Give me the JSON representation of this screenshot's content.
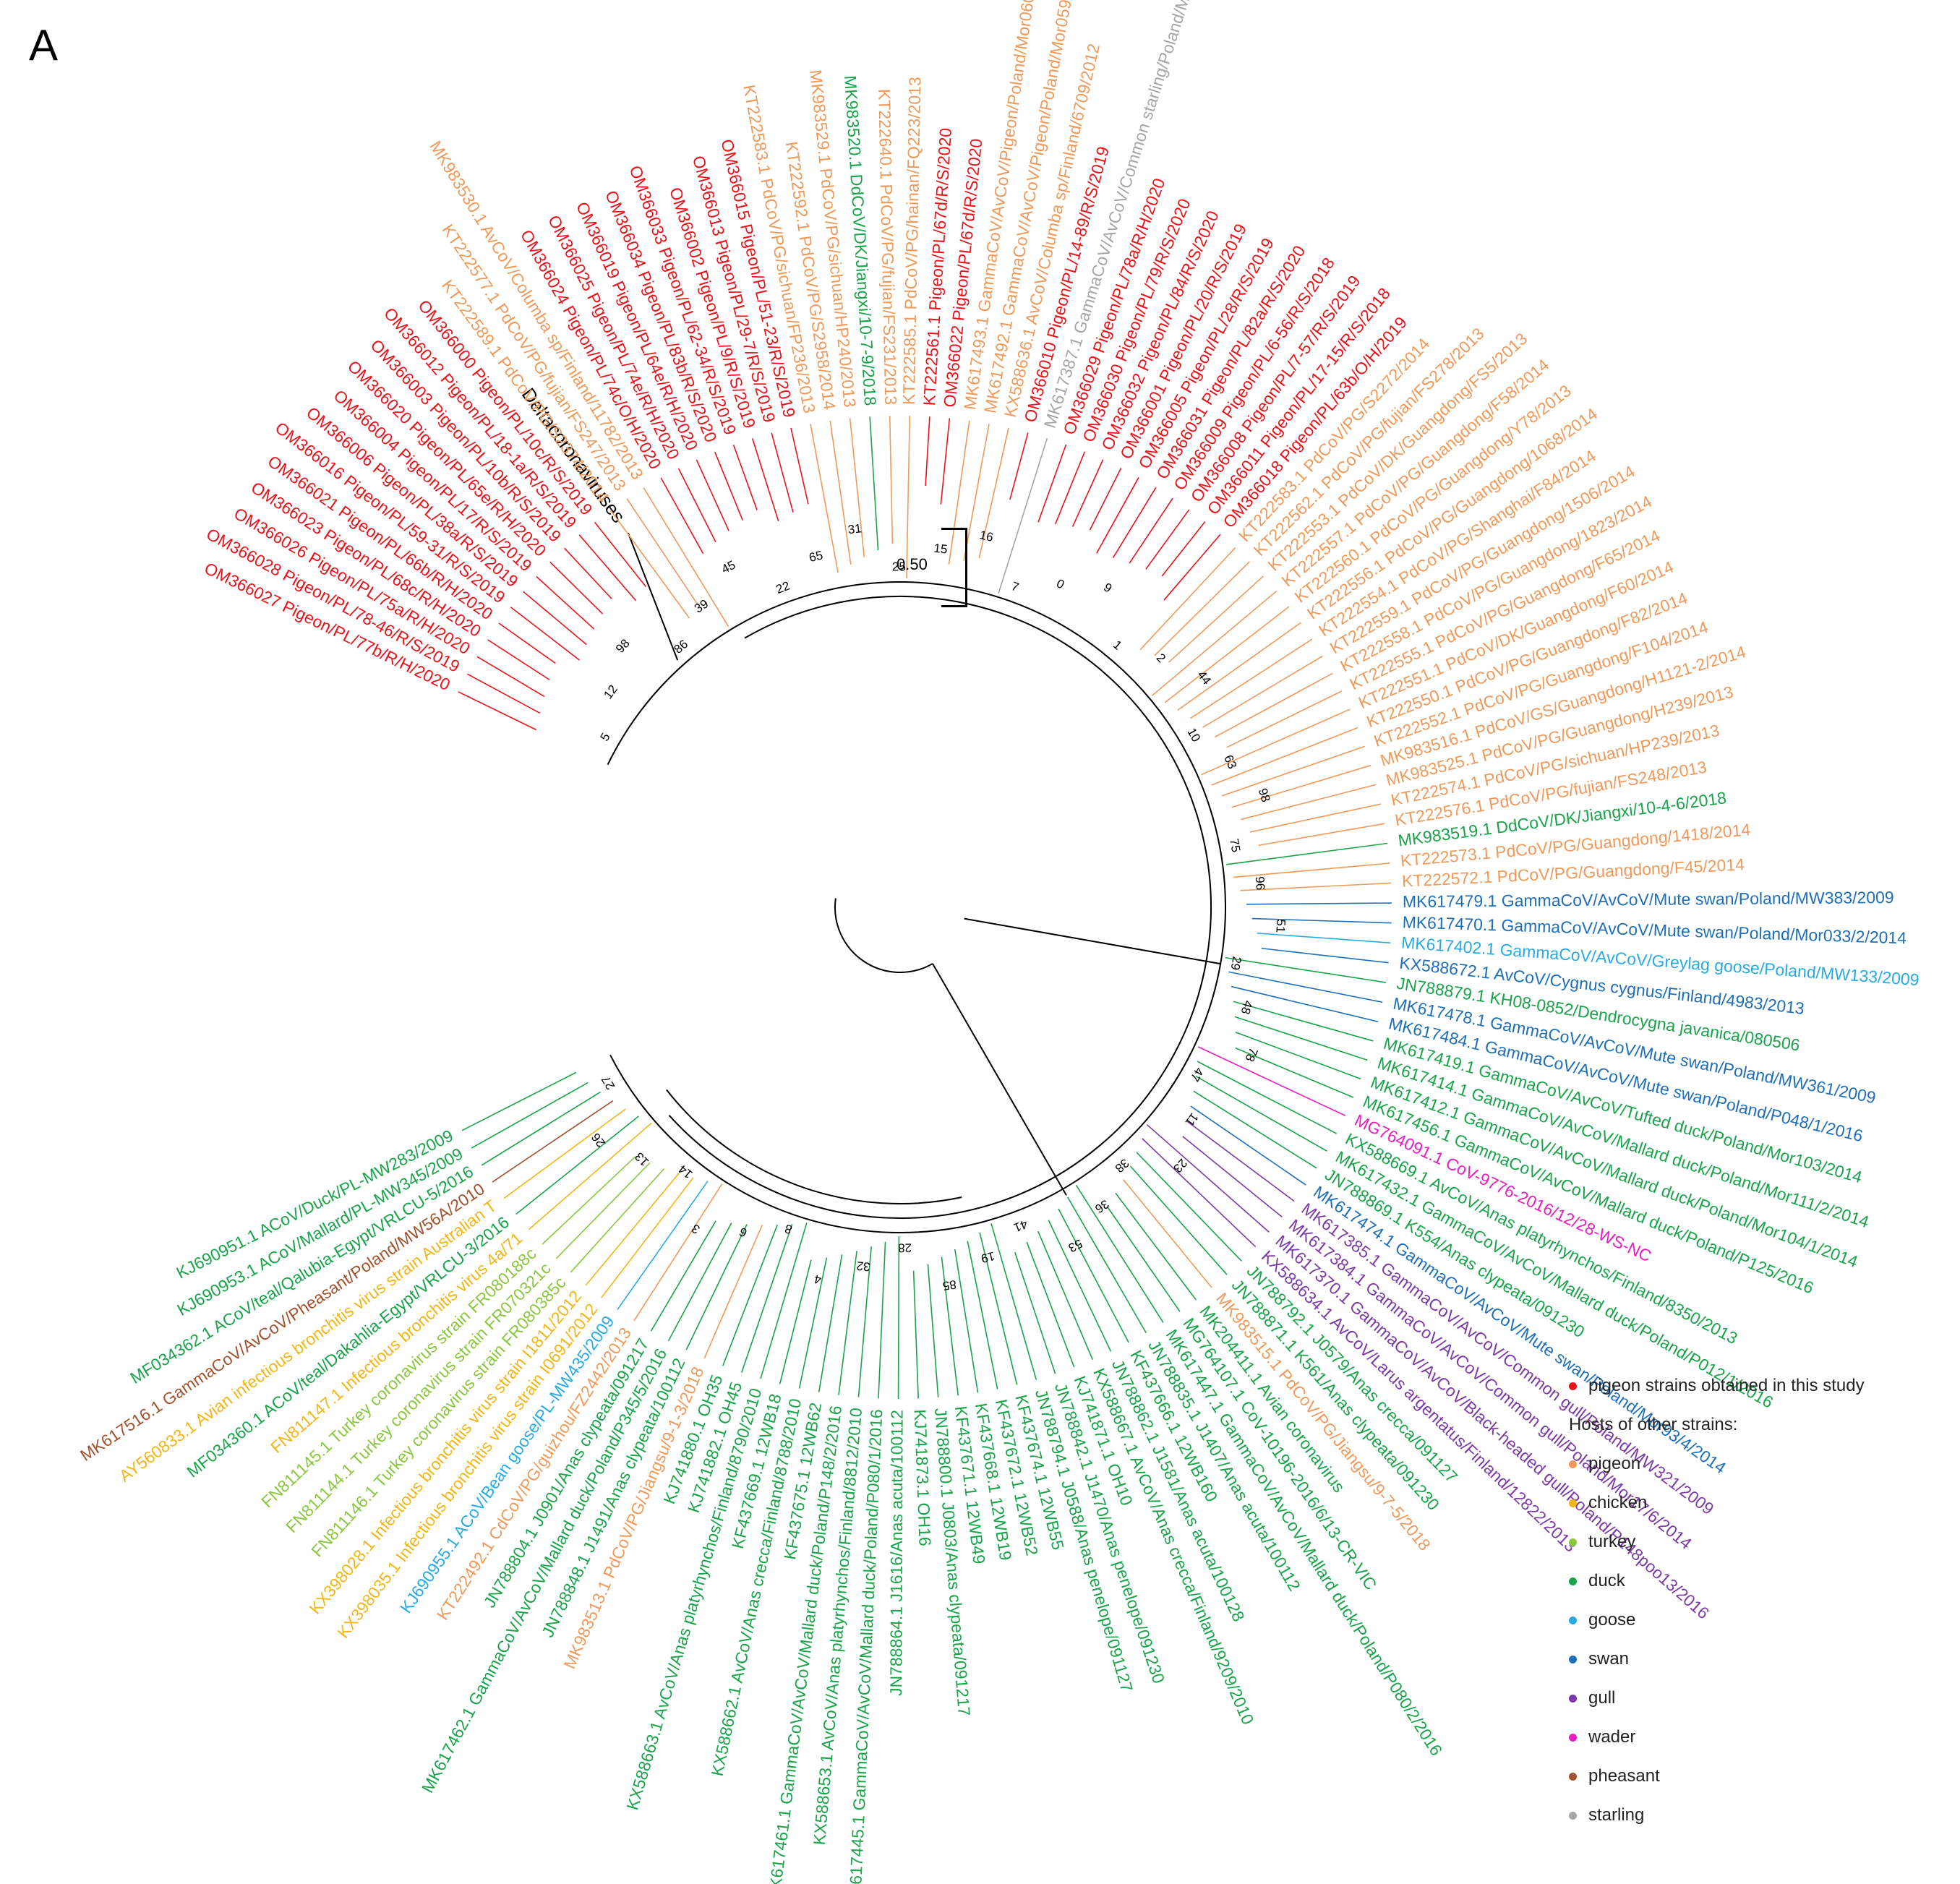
{
  "panel_label": "A",
  "scale_bar": {
    "label": "0.50"
  },
  "outgroup": {
    "label": "Deltacoronaviruses",
    "color": "#000000"
  },
  "colors": {
    "pigeon_study": "#e8141b",
    "pigeon": "#ef9a5b",
    "chicken": "#f2b617",
    "turkey": "#8cc63f",
    "duck": "#1aa34a",
    "goose": "#29abe2",
    "swan": "#1e6fb8",
    "gull": "#7b3aa6",
    "wader": "#e91ec2",
    "pheasant": "#a0522d",
    "starling": "#a6a6a6"
  },
  "legend": {
    "study_label": "pigeon strains obtained in this study",
    "study_color": "#e8141b",
    "heading": "Hosts of other strains:",
    "items": [
      {
        "label": "pigeon",
        "color": "#ef9a5b"
      },
      {
        "label": "chicken",
        "color": "#f2b617"
      },
      {
        "label": "turkey",
        "color": "#8cc63f"
      },
      {
        "label": "duck",
        "color": "#1aa34a"
      },
      {
        "label": "goose",
        "color": "#29abe2"
      },
      {
        "label": "swan",
        "color": "#1e6fb8"
      },
      {
        "label": "gull",
        "color": "#7b3aa6"
      },
      {
        "label": "wader",
        "color": "#e91ec2"
      },
      {
        "label": "pheasant",
        "color": "#a0522d"
      },
      {
        "label": "starling",
        "color": "#a6a6a6"
      }
    ]
  },
  "leaves": [
    {
      "label": "OM366027 Pigeon/PL/77b/R/H/2020",
      "host": "pigeon_study"
    },
    {
      "label": "OM366028 Pigeon/PL/78-46/R/S/2019",
      "host": "pigeon_study"
    },
    {
      "label": "OM366026 Pigeon/PL/75a/R/H/2020",
      "host": "pigeon_study"
    },
    {
      "label": "OM366023 Pigeon/PL/68c/R/H/2020",
      "host": "pigeon_study"
    },
    {
      "label": "OM366021 Pigeon/PL/66b/R/H/2020",
      "host": "pigeon_study"
    },
    {
      "label": "OM366016 Pigeon/PL/59-31/R/S/2019",
      "host": "pigeon_study"
    },
    {
      "label": "OM366006 Pigeon/PL/38a/R/S/2019",
      "host": "pigeon_study"
    },
    {
      "label": "OM366004 Pigeon/PL/17/R/S/2019",
      "host": "pigeon_study"
    },
    {
      "label": "OM366020 Pigeon/PL/65e/R/H/2020",
      "host": "pigeon_study"
    },
    {
      "label": "OM366003 Pigeon/PL/10b/R/S/2019",
      "host": "pigeon_study"
    },
    {
      "label": "OM366012 Pigeon/PL/18-1a/R/S/2019",
      "host": "pigeon_study"
    },
    {
      "label": "OM366000 Pigeon/PL/10c/R/S/2019",
      "host": "pigeon_study"
    },
    {
      "label": "KT222589.1 PdCoV/PG/S2374/2014",
      "host": "pigeon"
    },
    {
      "label": "KT222577.1 PdCoV/PG/fujian/FS247/2013",
      "host": "pigeon"
    },
    {
      "label": "MK983530.1 AvCoV/Columba sp/Finland/11782/2013",
      "host": "pigeon"
    },
    {
      "label": "OM366024 Pigeon/PL/74c/O/H/2020",
      "host": "pigeon_study"
    },
    {
      "label": "OM366025 Pigeon/PL/74e/R/H/2020",
      "host": "pigeon_study"
    },
    {
      "label": "OM366019 Pigeon/PL/64e/R/H/2020",
      "host": "pigeon_study"
    },
    {
      "label": "OM366034 Pigeon/PL/83b/R/S/2020",
      "host": "pigeon_study"
    },
    {
      "label": "OM366033 Pigeon/PL/62-34/R/S/2019",
      "host": "pigeon_study"
    },
    {
      "label": "OM366002 Pigeon/PL/9/R/S/2019",
      "host": "pigeon_study"
    },
    {
      "label": "OM366013 Pigeon/PL/29-7/R/S/2019",
      "host": "pigeon_study"
    },
    {
      "label": "OM366015 Pigeon/PL/51-23/R/S/2019",
      "host": "pigeon_study"
    },
    {
      "label": "KT222583.1 PdCoV/PG/sichuan/FP236/2013",
      "host": "pigeon"
    },
    {
      "label": "KT222592.1 PdCoV/PG/S2958/2014",
      "host": "pigeon"
    },
    {
      "label": "MK983529.1 PdCoV/PG/sichuan/HP240/2013",
      "host": "pigeon"
    },
    {
      "label": "MK983520.1 DdCoV/DK/Jiangxi/10-7-9/2018",
      "host": "duck"
    },
    {
      "label": "KT222640.1 PdCoV/PG/fujian/FS231/2013",
      "host": "pigeon"
    },
    {
      "label": "KT222585.1 PdCoV/PG/hainan/FQ223/2013",
      "host": "pigeon"
    },
    {
      "label": "KT222561.1 Pigeon/PL/67d/R/S/2020",
      "host": "pigeon_study"
    },
    {
      "label": "OM366022 Pigeon/PL/67d/R/S/2020",
      "host": "pigeon_study"
    },
    {
      "label": "MK617493.1 GammaCoV/AvCoV/Pigeon/Poland/Mor060/1/2014",
      "host": "pigeon"
    },
    {
      "label": "MK617492.1 GammaCoV/AvCoV/Pigeon/Poland/Mor059/2/2014",
      "host": "pigeon"
    },
    {
      "label": "KX588636.1 AvCoV/Columba sp/Finland/6709/2012",
      "host": "pigeon"
    },
    {
      "label": "OM366010 Pigeon/PL/14-89/R/S/2019",
      "host": "pigeon_study"
    },
    {
      "label": "MK617387.1 GammaCoV/AvCoV/Common starling/Poland/MW173/2009",
      "host": "starling"
    },
    {
      "label": "OM366029 Pigeon/PL/78a/R/H/2020",
      "host": "pigeon_study"
    },
    {
      "label": "OM366030 Pigeon/PL/79/R/S/2020",
      "host": "pigeon_study"
    },
    {
      "label": "OM366032 Pigeon/PL/84/R/S/2020",
      "host": "pigeon_study"
    },
    {
      "label": "OM366001 Pigeon/PL/20/R/S/2019",
      "host": "pigeon_study"
    },
    {
      "label": "OM366005 Pigeon/PL/28/R/S/2019",
      "host": "pigeon_study"
    },
    {
      "label": "OM366031 Pigeon/PL/82a/R/S/2020",
      "host": "pigeon_study"
    },
    {
      "label": "OM366009 Pigeon/PL/6-56/R/S/2018",
      "host": "pigeon_study"
    },
    {
      "label": "OM366008 Pigeon/PL/7-57/R/S/2019",
      "host": "pigeon_study"
    },
    {
      "label": "OM366011 Pigeon/PL/17-15/R/S/2018",
      "host": "pigeon_study"
    },
    {
      "label": "OM366018 Pigeon/PL/63b/O/H/2019",
      "host": "pigeon_study"
    },
    {
      "label": "KT222583.1 PdCoV/PG/S2272/2014",
      "host": "pigeon"
    },
    {
      "label": "KT222562.1 PdCoV/PG/fujian/FS278/2013",
      "host": "pigeon"
    },
    {
      "label": "KT222553.1 PdCoV/DK/Guangdong/FS5/2013",
      "host": "pigeon"
    },
    {
      "label": "KT222557.1 PdCoV/PG/Guangdong/F58/2014",
      "host": "pigeon"
    },
    {
      "label": "KT222560.1 PdCoV/PG/Guangdong/Y78/2013",
      "host": "pigeon"
    },
    {
      "label": "KT222556.1 PdCoV/PG/Guangdong/1068/2014",
      "host": "pigeon"
    },
    {
      "label": "KT222554.1 PdCoV/PG/Shanghai/F84/2014",
      "host": "pigeon"
    },
    {
      "label": "KT222559.1 PdCoV/PG/Guangdong/1506/2014",
      "host": "pigeon"
    },
    {
      "label": "KT222558.1 PdCoV/PG/Guangdong/1823/2014",
      "host": "pigeon"
    },
    {
      "label": "KT222555.1 PdCoV/PG/Guangdong/F65/2014",
      "host": "pigeon"
    },
    {
      "label": "KT222551.1 PdCoV/DK/Guangdong/F60/2014",
      "host": "pigeon"
    },
    {
      "label": "KT222550.1 PdCoV/PG/Guangdong/F82/2014",
      "host": "pigeon"
    },
    {
      "label": "KT222552.1 PdCoV/PG/Guangdong/F104/2014",
      "host": "pigeon"
    },
    {
      "label": "MK983516.1 PdCoV/GS/Guangdong/H1121-2/2014",
      "host": "pigeon"
    },
    {
      "label": "MK983525.1 PdCoV/PG/Guangdong/H239/2013",
      "host": "pigeon"
    },
    {
      "label": "KT222574.1 PdCoV/PG/sichuan/HP239/2013",
      "host": "pigeon"
    },
    {
      "label": "KT222576.1 PdCoV/PG/fujian/FS248/2013",
      "host": "pigeon"
    },
    {
      "label": "MK983519.1 DdCoV/DK/Jiangxi/10-4-6/2018",
      "host": "duck"
    },
    {
      "label": "KT222573.1 PdCoV/PG/Guangdong/1418/2014",
      "host": "pigeon"
    },
    {
      "label": "KT222572.1 PdCoV/PG/Guangdong/F45/2014",
      "host": "pigeon"
    },
    {
      "label": "MK617479.1 GammaCoV/AvCoV/Mute swan/Poland/MW383/2009",
      "host": "swan"
    },
    {
      "label": "MK617470.1 GammaCoV/AvCoV/Mute swan/Poland/Mor033/2/2014",
      "host": "swan"
    },
    {
      "label": "MK617402.1 GammaCoV/AvCoV/Greylag goose/Poland/MW133/2009",
      "host": "goose"
    },
    {
      "label": "KX588672.1 AvCoV/Cygnus cygnus/Finland/4983/2013",
      "host": "swan"
    },
    {
      "label": "JN788879.1 KH08-0852/Dendrocygna javanica/080506",
      "host": "duck"
    },
    {
      "label": "MK617478.1 GammaCoV/AvCoV/Mute swan/Poland/MW361/2009",
      "host": "swan"
    },
    {
      "label": "MK617484.1 GammaCoV/AvCoV/Mute swan/Poland/P048/1/2016",
      "host": "swan"
    },
    {
      "label": "MK617419.1 GammaCoV/AvCoV/Tufted duck/Poland/Mor103/2014",
      "host": "duck"
    },
    {
      "label": "MK617414.1 GammaCoV/AvCoV/Mallard duck/Poland/Mor111/2/2014",
      "host": "duck"
    },
    {
      "label": "MK617412.1 GammaCoV/AvCoV/Mallard duck/Poland/Mor104/1/2014",
      "host": "duck"
    },
    {
      "label": "MK617456.1 GammaCoV/AvCoV/Mallard duck/Poland/P125/2016",
      "host": "duck"
    },
    {
      "label": "MG764091.1 CoV-9776-2016/12/28-WS-NC",
      "host": "wader"
    },
    {
      "label": "KX588669.1 AvCoV/Anas platyrhynchos/Finland/8350/2013",
      "host": "duck"
    },
    {
      "label": "MK617432.1 GammaCoV/AvCoV/Mallard duck/Poland/P012/1/2016",
      "host": "duck"
    },
    {
      "label": "JN788869.1 K554/Anas clypeata/091230",
      "host": "duck"
    },
    {
      "label": "MK617474.1 GammaCoV/AvCoV/Mute swan/Poland/Mor93/4/2014",
      "host": "swan"
    },
    {
      "label": "MK617385.1 GammaCoV/AvCoV/Common gull/Poland/MW321/2009",
      "host": "gull"
    },
    {
      "label": "MK617384.1 GammaCoV/AvCoV/Common gull/Poland/Mor17/6/2014",
      "host": "gull"
    },
    {
      "label": "MK617370.1 GammaCoV/AvCoV/Black-headed gull/Poland/P148poo13/2016",
      "host": "gull"
    },
    {
      "label": "KX588634.1 AvCoV/Larus argentatus/Finland/12822/2013",
      "host": "gull"
    },
    {
      "label": "JN788792.1 J0579/Anas crecca/091127",
      "host": "duck"
    },
    {
      "label": "JN788871.1 K561/Anas clypeata/091230",
      "host": "duck"
    },
    {
      "label": "MK983515.1 PdCoV/PG/Jiangsu/9-7-5/2018",
      "host": "pigeon"
    },
    {
      "label": "MK204411.1 Avian coronavirus",
      "host": "duck"
    },
    {
      "label": "MG764107.1 CoV-10196-2016/6/13-CR-VIC",
      "host": "duck"
    },
    {
      "label": "MK617447.1 GammaCoV/AvCoV/Mallard duck/Poland/P080/2/2016",
      "host": "duck"
    },
    {
      "label": "JN788835.1 J1407/Anas acuta/100112",
      "host": "duck"
    },
    {
      "label": "KF437666.1 12WB160",
      "host": "duck"
    },
    {
      "label": "JN788862.1 J1581/Anas acuta/100128",
      "host": "duck"
    },
    {
      "label": "KX588667.1 AvCoV/Anas crecca/Finland/9209/2010",
      "host": "duck"
    },
    {
      "label": "KJ741871.1 OH10",
      "host": "duck"
    },
    {
      "label": "JN788842.1 J1470/Anas penelope/091230",
      "host": "duck"
    },
    {
      "label": "JN788794.1 J0588/Anas penelope/091127",
      "host": "duck"
    },
    {
      "label": "KF437674.1 12WB55",
      "host": "duck"
    },
    {
      "label": "KF437672.1 12WB52",
      "host": "duck"
    },
    {
      "label": "KF437668.1 12WB19",
      "host": "duck"
    },
    {
      "label": "KF437671.1 12WB49",
      "host": "duck"
    },
    {
      "label": "JN788800.1 J0803/Anas clypeata/091217",
      "host": "duck"
    },
    {
      "label": "KJ741873.1 OH16",
      "host": "duck"
    },
    {
      "label": "JN788864.1 J1616/Anas acuta/100112",
      "host": "duck"
    },
    {
      "label": "MK617445.1 GammaCoV/AvCoV/Mallard duck/Poland/P080/1/2016",
      "host": "duck"
    },
    {
      "label": "KX588653.1 AvCoV/Anas platyrhynchos/Finland/8812/2010",
      "host": "duck"
    },
    {
      "label": "MK617461.1 GammaCoV/AvCoV/Mallard duck/Poland/P148/2/2016",
      "host": "duck"
    },
    {
      "label": "KF437675.1 12WB62",
      "host": "duck"
    },
    {
      "label": "KX588662.1 AvCoV/Anas crecca/Finland/8788/2010",
      "host": "duck"
    },
    {
      "label": "KF437669.1 12WB18",
      "host": "duck"
    },
    {
      "label": "KX588663.1 AvCoV/Anas platyrhynchos/Finland/8790/2010",
      "host": "duck"
    },
    {
      "label": "KJ741882.1 OH45",
      "host": "duck"
    },
    {
      "label": "KJ741880.1 OH35",
      "host": "duck"
    },
    {
      "label": "MK983513.1 PdCoV/PG/Jiangsu/9-1-3/2018",
      "host": "pigeon"
    },
    {
      "label": "JN788848.1 J1491/Anas clypeata/100112",
      "host": "duck"
    },
    {
      "label": "MK617462.1 GammaCoV/AvCoV/Mallard duck/Poland/P345/5/2016",
      "host": "duck"
    },
    {
      "label": "JN788804.1 J0901/Anas clypeata/091217",
      "host": "duck"
    },
    {
      "label": "KT222492.1 CdCoV/PG/guizhou/FZ2442/2013",
      "host": "pigeon"
    },
    {
      "label": "KJ690955.1 ACoV/Bean goose/PL-MW435/2009",
      "host": "goose"
    },
    {
      "label": "KX398035.1 Infectious bronchitis virus strain I0691/2012",
      "host": "chicken"
    },
    {
      "label": "KX398028.1 Infectious bronchitis virus strain I1811/2012",
      "host": "chicken"
    },
    {
      "label": "FN811146.1 Turkey coronavirus strain FR080385c",
      "host": "turkey"
    },
    {
      "label": "FN811144.1 Turkey coronavirus strain FR070321c",
      "host": "turkey"
    },
    {
      "label": "FN811145.1 Turkey coronavirus strain FR080188c",
      "host": "turkey"
    },
    {
      "label": "FN811147.1 Infectious bronchitis virus 4a/71",
      "host": "chicken"
    },
    {
      "label": "MF034360.1 ACoV/teal/Dakahlia-Egypt/VRLCU-3/2016",
      "host": "duck"
    },
    {
      "label": "AY560833.1 Avian infectious bronchitis virus strain Australian T",
      "host": "chicken"
    },
    {
      "label": "MK617516.1 GammaCoV/AvCoV/Pheasant/Poland/MW56A/2010",
      "host": "pheasant"
    },
    {
      "label": "MF034362.1 ACoV/teal/Qalubia-Egypt/VRLCU-5/2016",
      "host": "duck"
    },
    {
      "label": "KJ690953.1 ACoV/Mallard/PL-MW345/2009",
      "host": "duck"
    },
    {
      "label": "KJ690951.1 ACoV/Duck/PL-MW283/2009",
      "host": "duck"
    }
  ],
  "node_labels": [
    "5",
    "12",
    "98",
    "86",
    "39",
    "45",
    "22",
    "65",
    "31",
    "25",
    "15",
    "16",
    "7",
    "0",
    "9",
    "1",
    "2",
    "44",
    "10",
    "63",
    "98",
    "75",
    "96",
    "51",
    "29",
    "48",
    "78",
    "47",
    "11",
    "23",
    "38",
    "36",
    "53",
    "41",
    "19",
    "85",
    "28",
    "32",
    "4",
    "8",
    "6",
    "3",
    "14",
    "13",
    "26",
    "27"
  ]
}
